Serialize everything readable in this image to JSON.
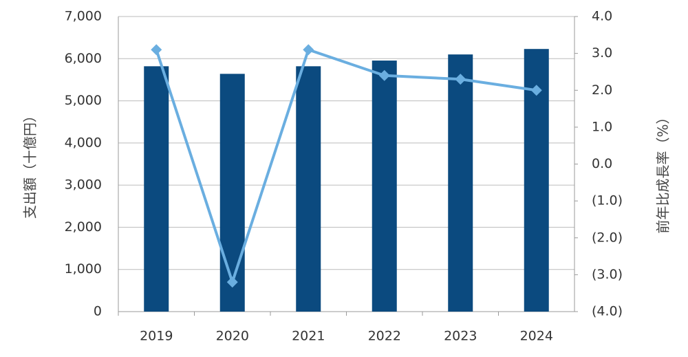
{
  "chart_data": {
    "type": "bar_line",
    "y_label": "支出額（十億円）",
    "y2_label": "前年比成長率（%）",
    "categories": [
      "2019",
      "2020",
      "2021",
      "2022",
      "2023",
      "2024"
    ],
    "series": [
      {
        "type": "bar",
        "color": "#0b4a7f",
        "values": [
          5820,
          5640,
          5820,
          5955,
          6100,
          6230
        ]
      },
      {
        "type": "line",
        "axis": "y2",
        "color": "#6aaee0",
        "values": [
          3.1,
          -3.2,
          3.1,
          2.4,
          2.3,
          2.0
        ]
      }
    ],
    "ylim": [
      0,
      7000
    ],
    "yticks": [
      0,
      {
        "value": 1000,
        "label": "1,000"
      },
      {
        "value": 2000,
        "label": "2,000"
      },
      {
        "value": 3000,
        "label": "3,000"
      },
      {
        "value": 4000,
        "label": "4,000"
      },
      {
        "value": 5000,
        "label": "5,000"
      },
      {
        "value": 6000,
        "label": "6,000"
      },
      {
        "value": 7000,
        "label": "7,000"
      }
    ],
    "y2lim": [
      -4,
      4
    ],
    "y2ticks": [
      {
        "value": 4,
        "label": "4.0"
      },
      {
        "value": 3,
        "label": "3.0"
      },
      {
        "value": 2,
        "label": "2.0"
      },
      {
        "value": 1,
        "label": "1.0"
      },
      {
        "value": 0,
        "label": "0.0"
      },
      {
        "value": -1,
        "label": "(1.0)"
      },
      {
        "value": -2,
        "label": "(2.0)"
      },
      {
        "value": -3,
        "label": "(3.0)"
      },
      {
        "value": -4,
        "label": "(4.0)"
      }
    ],
    "negative_tick_color": "#e02020",
    "grid": true
  }
}
